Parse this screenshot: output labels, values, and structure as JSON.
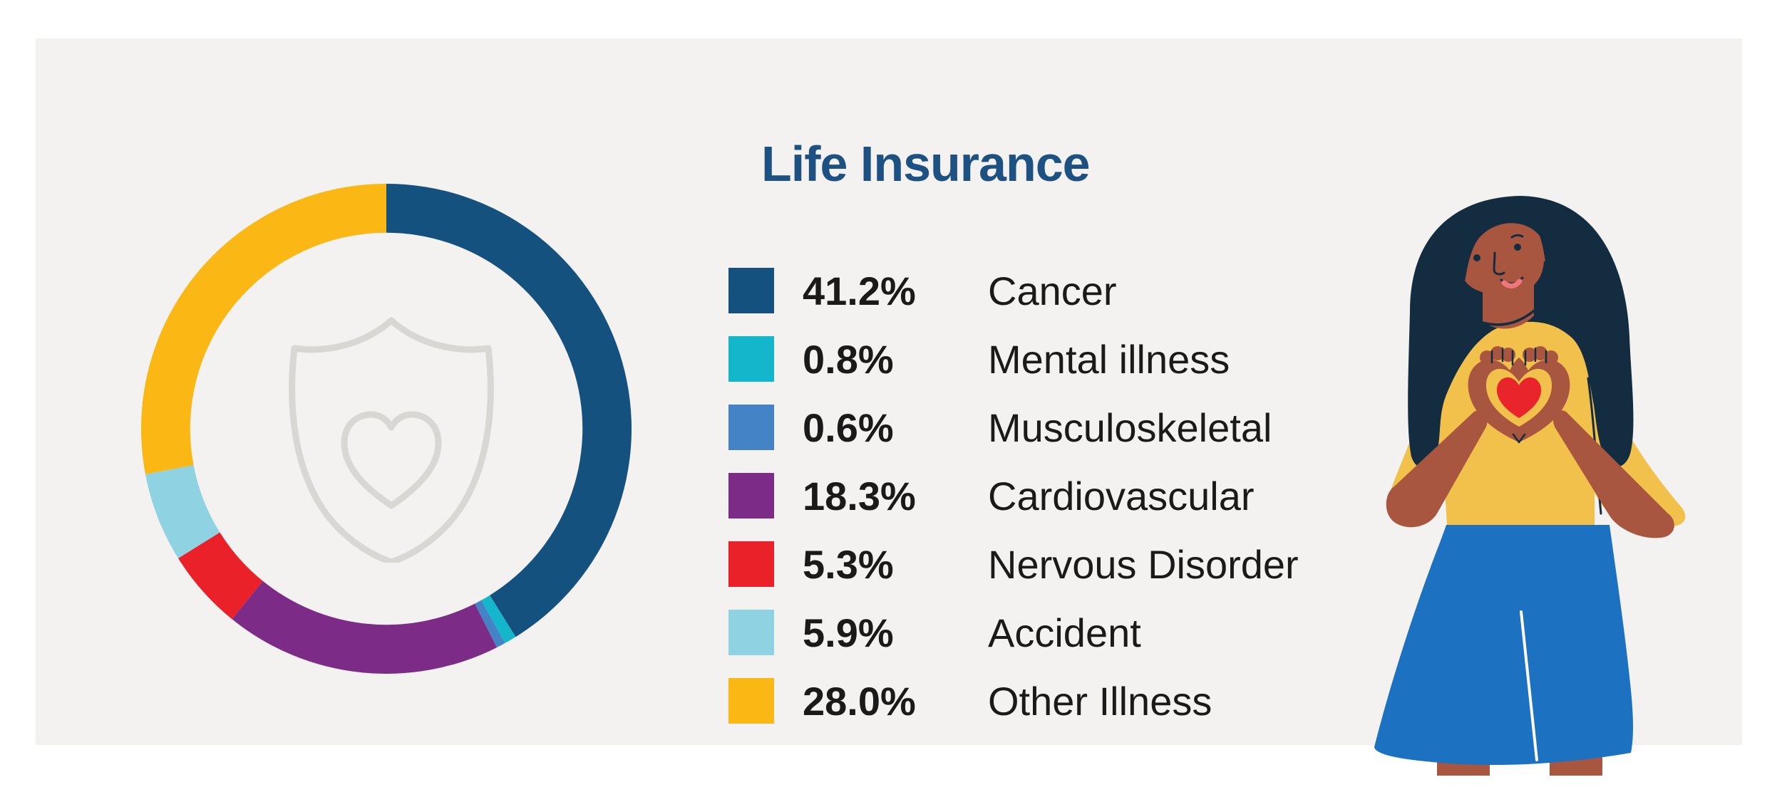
{
  "title": {
    "text": "Life Insurance",
    "color": "#1d5181"
  },
  "card": {
    "background": "#f3f2f0",
    "page_background": "#ffffff"
  },
  "legend": {
    "items": [
      {
        "pct": "41.2%",
        "label": "Cancer",
        "color": "#15517f"
      },
      {
        "pct": "0.8%",
        "label": "Mental illness",
        "color": "#14b6cb"
      },
      {
        "pct": "0.6%",
        "label": "Musculoskeletal",
        "color": "#4484c6"
      },
      {
        "pct": "18.3%",
        "label": "Cardiovascular",
        "color": "#7c2b87"
      },
      {
        "pct": "5.3%",
        "label": "Nervous Disorder",
        "color": "#eb2129"
      },
      {
        "pct": "5.9%",
        "label": "Accident",
        "color": "#8fd2e2"
      },
      {
        "pct": "28.0%",
        "label": "Other Illness",
        "color": "#fbb713"
      }
    ]
  },
  "chart_data": {
    "type": "pie",
    "subtype": "donut",
    "title": "Life Insurance",
    "labels": [
      "Cancer",
      "Mental illness",
      "Musculoskeletal",
      "Cardiovascular",
      "Nervous Disorder",
      "Accident",
      "Other Illness"
    ],
    "values": [
      41.2,
      0.8,
      0.6,
      18.3,
      5.3,
      5.9,
      28.0
    ],
    "colors": [
      "#15517f",
      "#14b6cb",
      "#4484c6",
      "#7c2b87",
      "#eb2129",
      "#8fd2e2",
      "#fbb713"
    ],
    "unit": "%",
    "start_angle_deg": 0,
    "direction": "clockwise",
    "inner_radius_ratio": 0.8,
    "center_icon": "shield-heart-icon",
    "legend_position": "right"
  },
  "icons": {
    "center_watermark": "shield-heart-icon",
    "watermark_color": "#d8d7d4"
  },
  "illustration": {
    "name": "woman-making-heart-hands",
    "skin": "#a8563f",
    "hair": "#142c3f",
    "shirt": "#f2c14b",
    "skirt": "#1c71c0",
    "heart": "#e9242b",
    "lips": "#ef767d"
  }
}
